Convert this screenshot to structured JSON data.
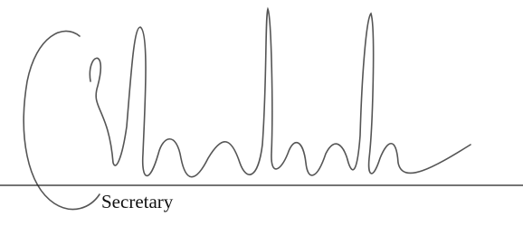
{
  "signature_block": {
    "role": "Secretary"
  }
}
